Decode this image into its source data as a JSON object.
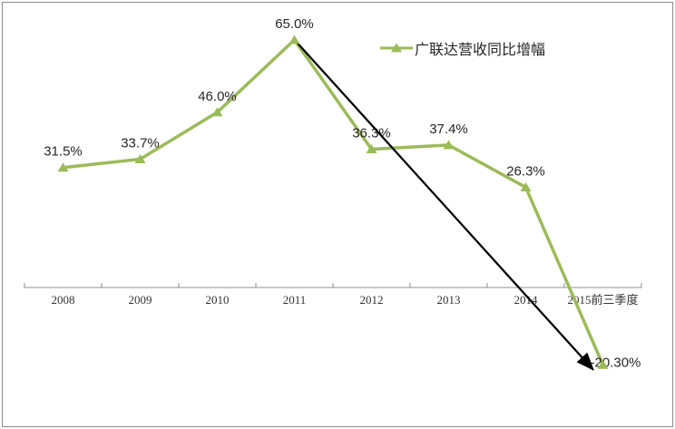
{
  "chart_data": {
    "type": "line",
    "title": "",
    "xlabel": "",
    "ylabel": "",
    "categories": [
      "2008",
      "2009",
      "2010",
      "2011",
      "2012",
      "2013",
      "2014",
      "2015前三季度"
    ],
    "series": [
      {
        "name": "广联达营收同比增幅",
        "values": [
          31.5,
          33.7,
          46.0,
          65.0,
          36.3,
          37.4,
          26.3,
          -20.3
        ],
        "point_labels": [
          "31.5%",
          "33.7%",
          "46.0%",
          "65.0%",
          "36.3%",
          "37.4%",
          "26.3%",
          "-20.30%"
        ],
        "color": "#9bbb59",
        "marker": "triangle",
        "line_width": 3.5
      }
    ],
    "legend": {
      "position": "top-center",
      "entries": [
        {
          "label": "广联达营收同比增幅",
          "color": "#9bbb59",
          "marker": "triangle"
        }
      ]
    },
    "annotation": {
      "type": "arrow",
      "from": {
        "category": "2011",
        "value": 65.0
      },
      "to": {
        "category": "2015前三季度",
        "value": -20.3
      },
      "color": "#000000"
    },
    "axes": {
      "x": {
        "tick_labels": [
          "2008",
          "2009",
          "2010",
          "2011",
          "2012",
          "2013",
          "2014",
          "2015前三季度"
        ],
        "line_color": "#a6a6a6",
        "tick_color": "#8c8c8c"
      },
      "y": {
        "visible": false,
        "baseline_value": 0,
        "ylim": [
          -25,
          70
        ]
      }
    },
    "grid": false,
    "background": "#ffffff",
    "border_color": "#8c8c8c",
    "label_color": "#262626"
  }
}
